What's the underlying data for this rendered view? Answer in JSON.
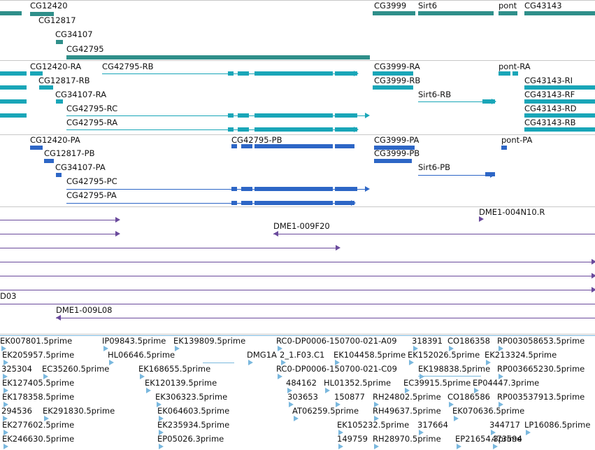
{
  "colors": {
    "gene": "#2f8f8a",
    "transcript": "#19a6b8",
    "protein": "#2d66c6",
    "clone": "#6a4a9c",
    "est": "#7ab8de",
    "border": "#c8c8c8"
  },
  "tracks": [
    {
      "name": "genes",
      "color_key": "gene",
      "labels": [
        {
          "id": "CG12420",
          "text": "CG12420"
        },
        {
          "id": "CG12817",
          "text": "CG12817"
        },
        {
          "id": "CG34107",
          "text": "CG34107"
        },
        {
          "id": "CG42795",
          "text": "CG42795"
        },
        {
          "id": "CG3999",
          "text": "CG3999"
        },
        {
          "id": "Sirt6",
          "text": "Sirt6"
        },
        {
          "id": "pont",
          "text": "pont"
        },
        {
          "id": "CG43143",
          "text": "CG43143"
        }
      ]
    },
    {
      "name": "transcripts",
      "color_key": "transcript",
      "labels": [
        {
          "id": "CG12420-RA",
          "text": "CG12420-RA"
        },
        {
          "id": "CG42795-RB",
          "text": "CG42795-RB"
        },
        {
          "id": "CG3999-RA",
          "text": "CG3999-RA"
        },
        {
          "id": "pont-RA",
          "text": "pont-RA"
        },
        {
          "id": "CG12817-RB",
          "text": "CG12817-RB"
        },
        {
          "id": "CG3999-RB",
          "text": "CG3999-RB"
        },
        {
          "id": "CG43143-RI",
          "text": "CG43143-RI"
        },
        {
          "id": "CG34107-RA",
          "text": "CG34107-RA"
        },
        {
          "id": "Sirt6-RB",
          "text": "Sirt6-RB"
        },
        {
          "id": "CG43143-RF",
          "text": "CG43143-RF"
        },
        {
          "id": "CG42795-RC",
          "text": "CG42795-RC"
        },
        {
          "id": "CG43143-RD",
          "text": "CG43143-RD"
        },
        {
          "id": "CG42795-RA",
          "text": "CG42795-RA"
        },
        {
          "id": "CG43143-RB",
          "text": "CG43143-RB"
        }
      ]
    },
    {
      "name": "proteins",
      "color_key": "protein",
      "labels": [
        {
          "id": "CG12420-PA",
          "text": "CG12420-PA"
        },
        {
          "id": "CG42795-PB",
          "text": "CG42795-PB"
        },
        {
          "id": "CG3999-PA",
          "text": "CG3999-PA"
        },
        {
          "id": "pont-PA",
          "text": "pont-PA"
        },
        {
          "id": "CG12817-PB",
          "text": "CG12817-PB"
        },
        {
          "id": "CG3999-PB",
          "text": "CG3999-PB"
        },
        {
          "id": "CG34107-PA",
          "text": "CG34107-PA"
        },
        {
          "id": "Sirt6-PB",
          "text": "Sirt6-PB"
        },
        {
          "id": "CG42795-PC",
          "text": "CG42795-PC"
        },
        {
          "id": "CG42795-PA",
          "text": "CG42795-PA"
        }
      ]
    },
    {
      "name": "clones",
      "color_key": "clone",
      "labels": [
        {
          "id": "DME1-004N10.R",
          "text": "DME1-004N10.R"
        },
        {
          "id": "DME1-009F20",
          "text": "DME1-009F20"
        },
        {
          "id": "D03",
          "text": "D03"
        },
        {
          "id": "DME1-009L08",
          "text": "DME1-009L08"
        }
      ]
    },
    {
      "name": "ests",
      "color_key": "est",
      "labels": [
        {
          "id": "EK007801",
          "text": "EK007801.5prime"
        },
        {
          "id": "IP09843",
          "text": "IP09843.5prime"
        },
        {
          "id": "EK139809",
          "text": "EK139809.5prime"
        },
        {
          "id": "RC0-A09",
          "text": "RC0-DP0006-150700-021-A09"
        },
        {
          "id": "318391",
          "text": "318391"
        },
        {
          "id": "CO186358",
          "text": "CO186358"
        },
        {
          "id": "RP003058653",
          "text": "RP003058653.5prime"
        },
        {
          "id": "EK205957",
          "text": "EK205957.5prime"
        },
        {
          "id": "HL06646",
          "text": "HL06646.5prime"
        },
        {
          "id": "DMG1A",
          "text": "DMG1A"
        },
        {
          "id": "2_1.F03.C1",
          "text": "2_1.F03.C1"
        },
        {
          "id": "EK104458",
          "text": "EK104458.5prime"
        },
        {
          "id": "EK152026",
          "text": "EK152026.5prime"
        },
        {
          "id": "EK213324",
          "text": "EK213324.5prime"
        },
        {
          "id": "325304",
          "text": "325304"
        },
        {
          "id": "EC35260",
          "text": "EC35260.5prime"
        },
        {
          "id": "EK168655",
          "text": "EK168655.5prime"
        },
        {
          "id": "RC0-C09",
          "text": "RC0-DP0006-150700-021-C09"
        },
        {
          "id": "EK198838",
          "text": "EK198838.5prime"
        },
        {
          "id": "RP003665230",
          "text": "RP003665230.5prime"
        },
        {
          "id": "EK127405",
          "text": "EK127405.5prime"
        },
        {
          "id": "EK120139",
          "text": "EK120139.5prime"
        },
        {
          "id": "484162",
          "text": "484162"
        },
        {
          "id": "HL01352",
          "text": "HL01352.5prime"
        },
        {
          "id": "EC39915",
          "text": "EC39915.5prime"
        },
        {
          "id": "EP04447",
          "text": "EP04447.3prime"
        },
        {
          "id": "EK178358",
          "text": "EK178358.5prime"
        },
        {
          "id": "EK306323",
          "text": "EK306323.5prime"
        },
        {
          "id": "303653",
          "text": "303653"
        },
        {
          "id": "150877",
          "text": "150877"
        },
        {
          "id": "RH24802",
          "text": "RH24802.5prime"
        },
        {
          "id": "CO186586",
          "text": "CO186586"
        },
        {
          "id": "RP003537913",
          "text": "RP003537913.5prime"
        },
        {
          "id": "294536",
          "text": "294536"
        },
        {
          "id": "EK291830",
          "text": "EK291830.5prime"
        },
        {
          "id": "EK064603",
          "text": "EK064603.5prime"
        },
        {
          "id": "AT06259",
          "text": "AT06259.5prime"
        },
        {
          "id": "RH49637",
          "text": "RH49637.5prime"
        },
        {
          "id": "EK070636",
          "text": "EK070636.5prime"
        },
        {
          "id": "EK277602",
          "text": "EK277602.5prime"
        },
        {
          "id": "EK235934",
          "text": "EK235934.5prime"
        },
        {
          "id": "EK105232",
          "text": "EK105232.5prime"
        },
        {
          "id": "317664",
          "text": "317664"
        },
        {
          "id": "344717",
          "text": "344717"
        },
        {
          "id": "LP16086",
          "text": "LP16086.5prime"
        },
        {
          "id": "EK246630",
          "text": "EK246630.5prime"
        },
        {
          "id": "EP05026",
          "text": "EP05026.3prime"
        },
        {
          "id": "149759",
          "text": "149759"
        },
        {
          "id": "RH28970",
          "text": "RH28970.5prime"
        },
        {
          "id": "EP21654",
          "text": "EP21654.3prime"
        },
        {
          "id": "473594",
          "text": "473594"
        }
      ]
    }
  ]
}
